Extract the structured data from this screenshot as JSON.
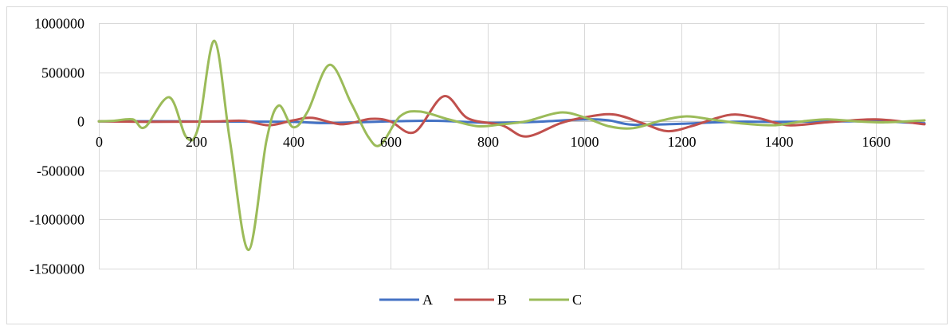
{
  "chart_data": {
    "type": "line",
    "title": "",
    "xlabel": "",
    "ylabel": "",
    "xlim": [
      0,
      1700
    ],
    "ylim": [
      -1500000,
      1000000
    ],
    "x_ticks": [
      "0",
      "200",
      "400",
      "600",
      "800",
      "1000",
      "1200",
      "1400",
      "1600"
    ],
    "y_ticks": [
      "1000000",
      "500000",
      "0",
      "-500000",
      "-1000000",
      "-1500000"
    ],
    "grid": true,
    "legend_position": "bottom",
    "series": [
      {
        "name": "A",
        "color": "#4472C4",
        "points": [
          [
            0,
            0
          ],
          [
            100,
            1000
          ],
          [
            200,
            -1000
          ],
          [
            300,
            -3000
          ],
          [
            400,
            -5000
          ],
          [
            460,
            -18000
          ],
          [
            520,
            -12000
          ],
          [
            600,
            0
          ],
          [
            700,
            5000
          ],
          [
            800,
            -15000
          ],
          [
            900,
            -5000
          ],
          [
            1000,
            20000
          ],
          [
            1050,
            10000
          ],
          [
            1100,
            -35000
          ],
          [
            1200,
            -25000
          ],
          [
            1300,
            -5000
          ],
          [
            1400,
            -5000
          ],
          [
            1500,
            -2000
          ],
          [
            1600,
            0
          ],
          [
            1700,
            -20000
          ]
        ]
      },
      {
        "name": "B",
        "color": "#C0504D",
        "points": [
          [
            0,
            0
          ],
          [
            100,
            -5000
          ],
          [
            200,
            -3000
          ],
          [
            250,
            0
          ],
          [
            300,
            5000
          ],
          [
            350,
            -40000
          ],
          [
            400,
            10000
          ],
          [
            440,
            35000
          ],
          [
            500,
            -30000
          ],
          [
            560,
            25000
          ],
          [
            600,
            0
          ],
          [
            650,
            -110000
          ],
          [
            710,
            255000
          ],
          [
            760,
            30000
          ],
          [
            830,
            -40000
          ],
          [
            880,
            -155000
          ],
          [
            950,
            -20000
          ],
          [
            1000,
            40000
          ],
          [
            1060,
            70000
          ],
          [
            1120,
            -20000
          ],
          [
            1170,
            -100000
          ],
          [
            1220,
            -50000
          ],
          [
            1270,
            30000
          ],
          [
            1310,
            70000
          ],
          [
            1360,
            30000
          ],
          [
            1420,
            -40000
          ],
          [
            1500,
            -10000
          ],
          [
            1600,
            20000
          ],
          [
            1700,
            -30000
          ]
        ]
      },
      {
        "name": "C",
        "color": "#9BBB59",
        "points": [
          [
            0,
            0
          ],
          [
            30,
            5000
          ],
          [
            70,
            20000
          ],
          [
            95,
            -60000
          ],
          [
            145,
            245000
          ],
          [
            180,
            -160000
          ],
          [
            205,
            -60000
          ],
          [
            238,
            820000
          ],
          [
            270,
            -200000
          ],
          [
            308,
            -1310000
          ],
          [
            345,
            -200000
          ],
          [
            370,
            160000
          ],
          [
            400,
            -60000
          ],
          [
            430,
            100000
          ],
          [
            475,
            575000
          ],
          [
            520,
            180000
          ],
          [
            555,
            -160000
          ],
          [
            580,
            -240000
          ],
          [
            620,
            50000
          ],
          [
            660,
            100000
          ],
          [
            720,
            20000
          ],
          [
            780,
            -50000
          ],
          [
            830,
            -30000
          ],
          [
            880,
            0
          ],
          [
            950,
            90000
          ],
          [
            1000,
            40000
          ],
          [
            1050,
            -50000
          ],
          [
            1100,
            -70000
          ],
          [
            1160,
            10000
          ],
          [
            1210,
            50000
          ],
          [
            1260,
            20000
          ],
          [
            1320,
            -20000
          ],
          [
            1390,
            -40000
          ],
          [
            1450,
            0
          ],
          [
            1500,
            20000
          ],
          [
            1560,
            0
          ],
          [
            1620,
            -10000
          ],
          [
            1700,
            10000
          ]
        ]
      }
    ]
  }
}
